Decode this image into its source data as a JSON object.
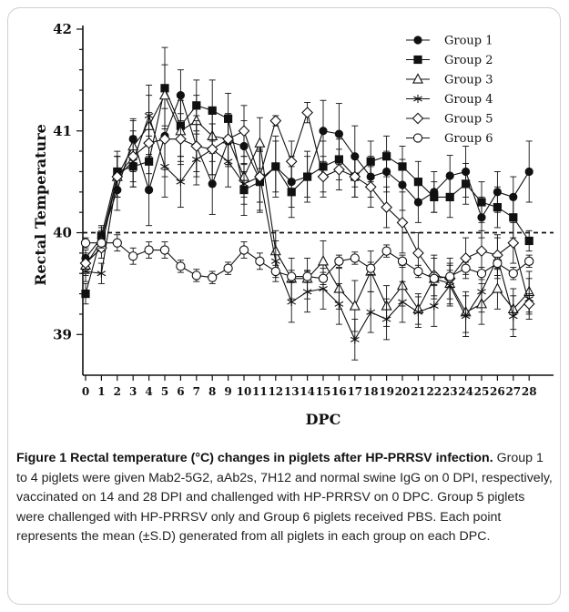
{
  "chart_data": {
    "type": "line",
    "ylabel": "Rectal Temperature",
    "xlabel": "DPC",
    "ylim": [
      38.6,
      42
    ],
    "yticks": [
      39,
      40,
      41,
      42
    ],
    "x": [
      0,
      1,
      2,
      3,
      4,
      5,
      6,
      7,
      8,
      9,
      10,
      11,
      12,
      13,
      14,
      15,
      16,
      17,
      18,
      19,
      20,
      21,
      22,
      23,
      24,
      25,
      26,
      27,
      28
    ],
    "reference_line": 40,
    "legend_position": "top-right",
    "series": [
      {
        "name": "Group 1",
        "marker": "circle-filled",
        "values": [
          39.75,
          39.95,
          40.42,
          40.92,
          40.42,
          40.95,
          41.35,
          40.85,
          40.48,
          40.9,
          40.85,
          40.52,
          40.65,
          40.5,
          40.55,
          41.0,
          40.97,
          40.75,
          40.55,
          40.6,
          40.47,
          40.3,
          40.4,
          40.56,
          40.6,
          40.15,
          40.4,
          40.35,
          40.6
        ],
        "errors": [
          0.08,
          0.1,
          0.2,
          0.2,
          0.35,
          0.4,
          0.25,
          0.3,
          0.3,
          0.25,
          0.25,
          0.3,
          0.3,
          0.25,
          0.25,
          0.3,
          0.3,
          0.3,
          0.2,
          0.2,
          0.25,
          0.2,
          0.2,
          0.2,
          0.25,
          0.2,
          0.2,
          0.2,
          0.3
        ]
      },
      {
        "name": "Group 2",
        "marker": "square-filled",
        "values": [
          39.4,
          39.97,
          40.6,
          40.65,
          40.7,
          41.42,
          41.05,
          41.25,
          41.2,
          41.12,
          40.42,
          40.5,
          40.65,
          40.4,
          40.55,
          40.65,
          40.72,
          40.55,
          40.7,
          40.75,
          40.65,
          40.5,
          40.35,
          40.35,
          40.48,
          40.3,
          40.25,
          40.15,
          39.92
        ],
        "errors": [
          0.1,
          0.1,
          0.2,
          0.2,
          0.25,
          0.4,
          0.3,
          0.25,
          0.3,
          0.25,
          0.25,
          0.3,
          0.25,
          0.25,
          0.2,
          0.25,
          0.2,
          0.2,
          0.2,
          0.2,
          0.2,
          0.2,
          0.15,
          0.2,
          0.2,
          0.2,
          0.2,
          0.2,
          0.1
        ]
      },
      {
        "name": "Group 3",
        "marker": "triangle-open",
        "values": [
          39.68,
          39.92,
          40.55,
          40.85,
          41.05,
          41.35,
          41.0,
          41.1,
          40.95,
          40.92,
          40.55,
          40.88,
          39.82,
          39.55,
          39.55,
          39.72,
          39.45,
          39.28,
          39.62,
          39.28,
          39.48,
          39.25,
          39.55,
          39.5,
          39.22,
          39.3,
          39.45,
          39.25,
          39.42
        ],
        "errors": [
          0.1,
          0.1,
          0.2,
          0.25,
          0.3,
          0.3,
          0.3,
          0.25,
          0.25,
          0.25,
          0.2,
          0.25,
          0.2,
          0.2,
          0.2,
          0.2,
          0.2,
          0.25,
          0.2,
          0.2,
          0.2,
          0.15,
          0.2,
          0.2,
          0.2,
          0.2,
          0.2,
          0.2,
          0.2
        ]
      },
      {
        "name": "Group 4",
        "marker": "asterisk",
        "values": [
          39.62,
          39.6,
          40.55,
          40.7,
          41.15,
          40.65,
          40.5,
          40.72,
          40.82,
          40.7,
          40.48,
          40.55,
          39.72,
          39.32,
          39.42,
          39.45,
          39.3,
          38.95,
          39.22,
          39.15,
          39.32,
          39.22,
          39.28,
          39.48,
          39.18,
          39.42,
          39.75,
          39.18,
          39.35
        ],
        "errors": [
          0.1,
          0.1,
          0.2,
          0.25,
          0.3,
          0.3,
          0.25,
          0.25,
          0.25,
          0.25,
          0.2,
          0.25,
          0.2,
          0.2,
          0.2,
          0.2,
          0.2,
          0.2,
          0.2,
          0.2,
          0.2,
          0.15,
          0.2,
          0.2,
          0.2,
          0.2,
          0.2,
          0.2,
          0.2
        ]
      },
      {
        "name": "Group 5",
        "marker": "diamond-open",
        "values": [
          39.7,
          39.85,
          40.55,
          40.75,
          40.88,
          40.92,
          40.92,
          40.85,
          40.82,
          40.92,
          41.0,
          40.55,
          41.1,
          40.7,
          41.18,
          40.55,
          40.62,
          40.55,
          40.45,
          40.25,
          40.1,
          39.8,
          39.58,
          39.55,
          39.75,
          39.82,
          39.78,
          39.9,
          39.3
        ],
        "errors": [
          0.1,
          0.1,
          0.2,
          0.25,
          0.3,
          0.3,
          0.25,
          0.25,
          0.25,
          0.25,
          0.25,
          0.25,
          0.05,
          0.2,
          0.1,
          0.2,
          0.2,
          0.2,
          0.2,
          0.2,
          0.3,
          0.2,
          0.2,
          0.2,
          0.2,
          0.2,
          0.2,
          0.2,
          0.1
        ]
      },
      {
        "name": "Group 6",
        "marker": "circle-open",
        "values": [
          39.9,
          39.9,
          39.9,
          39.77,
          39.83,
          39.83,
          39.67,
          39.58,
          39.56,
          39.65,
          39.83,
          39.72,
          39.62,
          39.57,
          39.57,
          39.55,
          39.72,
          39.75,
          39.65,
          39.82,
          39.72,
          39.62,
          39.55,
          39.57,
          39.65,
          39.6,
          39.7,
          39.6,
          39.72
        ],
        "errors": [
          0.05,
          0.05,
          0.08,
          0.08,
          0.08,
          0.08,
          0.06,
          0.06,
          0.06,
          0.06,
          0.08,
          0.08,
          0.06,
          0.06,
          0.06,
          0.06,
          0.06,
          0.06,
          0.06,
          0.06,
          0.06,
          0.06,
          0.06,
          0.06,
          0.06,
          0.06,
          0.06,
          0.06,
          0.06
        ]
      }
    ]
  },
  "caption": {
    "label": "Figure 1",
    "title": "Rectal temperature (°C) changes in piglets after HP-PRRSV infection.",
    "text": "Group 1 to 4 piglets were given Mab2-5G2, aAb2s, 7H12 and normal swine IgG on 0 DPI, respectively, vaccinated on 14 and 28 DPI and challenged with HP-PRRSV on 0 DPC. Group 5 piglets were challenged with HP-PRRSV only and Group 6 piglets received PBS. Each point represents the mean (±S.D) generated from all piglets in each group on each DPC."
  }
}
